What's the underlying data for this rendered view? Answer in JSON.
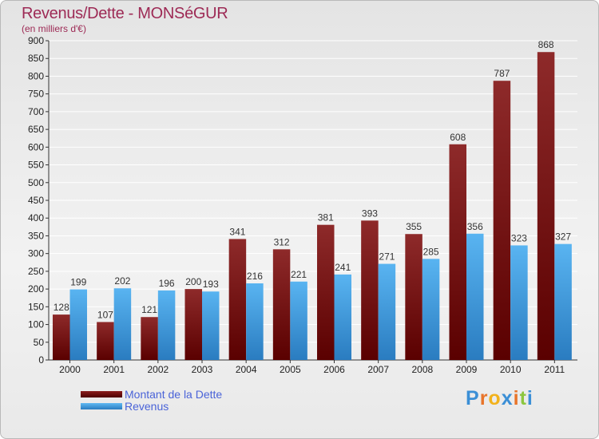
{
  "header": {
    "title": "Revenus/Dette - MONSéGUR",
    "subtitle": "(en milliers d'€)"
  },
  "chart_data": {
    "type": "bar",
    "title": "Revenus/Dette - MONSéGUR",
    "ylabel": "(en milliers d'€)",
    "xlabel": "",
    "ylim": [
      0,
      900
    ],
    "ytick_step": 50,
    "grid": true,
    "categories": [
      "2000",
      "2001",
      "2002",
      "2003",
      "2004",
      "2005",
      "2006",
      "2007",
      "2008",
      "2009",
      "2010",
      "2011"
    ],
    "series": [
      {
        "name": "Montant de la Dette",
        "color": "#7a1515",
        "values": [
          128,
          107,
          121,
          200,
          341,
          312,
          381,
          393,
          355,
          608,
          787,
          868
        ]
      },
      {
        "name": "Revenus",
        "color": "#3a9be0",
        "values": [
          199,
          202,
          196,
          193,
          216,
          221,
          241,
          271,
          285,
          356,
          323,
          327
        ]
      }
    ],
    "legend_position": "bottom-left"
  },
  "legend": {
    "items": [
      {
        "label": "Montant de la Dette",
        "color": "#6b0f0f"
      },
      {
        "label": "Revenus",
        "color": "#3a9be0"
      }
    ]
  },
  "brand": {
    "letters": [
      "P",
      "r",
      "o",
      "x",
      "i",
      "t",
      "i"
    ],
    "colors": [
      "#3b8fd6",
      "#e8742a",
      "#f2b21c",
      "#3b8fd6",
      "#e8742a",
      "#8cc63f",
      "#3b8fd6"
    ]
  }
}
